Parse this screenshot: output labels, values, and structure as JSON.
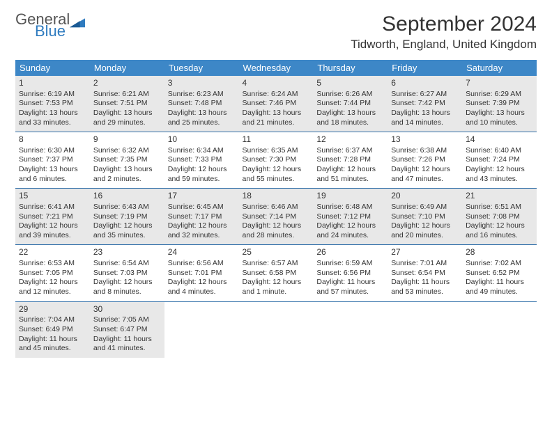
{
  "logo": {
    "general": "General",
    "blue": "Blue"
  },
  "title": "September 2024",
  "location": "Tidworth, England, United Kingdom",
  "colors": {
    "header_bg": "#3d87c7",
    "header_text": "#ffffff",
    "band_bg": "#e8e8e8",
    "sep_line": "#2f6ea8",
    "text": "#333333",
    "logo_general": "#555555",
    "logo_blue": "#2f7bbf"
  },
  "weekdays": [
    "Sunday",
    "Monday",
    "Tuesday",
    "Wednesday",
    "Thursday",
    "Friday",
    "Saturday"
  ],
  "days": [
    {
      "n": "1",
      "sr": "6:19 AM",
      "ss": "7:53 PM",
      "dl": "13 hours and 33 minutes."
    },
    {
      "n": "2",
      "sr": "6:21 AM",
      "ss": "7:51 PM",
      "dl": "13 hours and 29 minutes."
    },
    {
      "n": "3",
      "sr": "6:23 AM",
      "ss": "7:48 PM",
      "dl": "13 hours and 25 minutes."
    },
    {
      "n": "4",
      "sr": "6:24 AM",
      "ss": "7:46 PM",
      "dl": "13 hours and 21 minutes."
    },
    {
      "n": "5",
      "sr": "6:26 AM",
      "ss": "7:44 PM",
      "dl": "13 hours and 18 minutes."
    },
    {
      "n": "6",
      "sr": "6:27 AM",
      "ss": "7:42 PM",
      "dl": "13 hours and 14 minutes."
    },
    {
      "n": "7",
      "sr": "6:29 AM",
      "ss": "7:39 PM",
      "dl": "13 hours and 10 minutes."
    },
    {
      "n": "8",
      "sr": "6:30 AM",
      "ss": "7:37 PM",
      "dl": "13 hours and 6 minutes."
    },
    {
      "n": "9",
      "sr": "6:32 AM",
      "ss": "7:35 PM",
      "dl": "13 hours and 2 minutes."
    },
    {
      "n": "10",
      "sr": "6:34 AM",
      "ss": "7:33 PM",
      "dl": "12 hours and 59 minutes."
    },
    {
      "n": "11",
      "sr": "6:35 AM",
      "ss": "7:30 PM",
      "dl": "12 hours and 55 minutes."
    },
    {
      "n": "12",
      "sr": "6:37 AM",
      "ss": "7:28 PM",
      "dl": "12 hours and 51 minutes."
    },
    {
      "n": "13",
      "sr": "6:38 AM",
      "ss": "7:26 PM",
      "dl": "12 hours and 47 minutes."
    },
    {
      "n": "14",
      "sr": "6:40 AM",
      "ss": "7:24 PM",
      "dl": "12 hours and 43 minutes."
    },
    {
      "n": "15",
      "sr": "6:41 AM",
      "ss": "7:21 PM",
      "dl": "12 hours and 39 minutes."
    },
    {
      "n": "16",
      "sr": "6:43 AM",
      "ss": "7:19 PM",
      "dl": "12 hours and 35 minutes."
    },
    {
      "n": "17",
      "sr": "6:45 AM",
      "ss": "7:17 PM",
      "dl": "12 hours and 32 minutes."
    },
    {
      "n": "18",
      "sr": "6:46 AM",
      "ss": "7:14 PM",
      "dl": "12 hours and 28 minutes."
    },
    {
      "n": "19",
      "sr": "6:48 AM",
      "ss": "7:12 PM",
      "dl": "12 hours and 24 minutes."
    },
    {
      "n": "20",
      "sr": "6:49 AM",
      "ss": "7:10 PM",
      "dl": "12 hours and 20 minutes."
    },
    {
      "n": "21",
      "sr": "6:51 AM",
      "ss": "7:08 PM",
      "dl": "12 hours and 16 minutes."
    },
    {
      "n": "22",
      "sr": "6:53 AM",
      "ss": "7:05 PM",
      "dl": "12 hours and 12 minutes."
    },
    {
      "n": "23",
      "sr": "6:54 AM",
      "ss": "7:03 PM",
      "dl": "12 hours and 8 minutes."
    },
    {
      "n": "24",
      "sr": "6:56 AM",
      "ss": "7:01 PM",
      "dl": "12 hours and 4 minutes."
    },
    {
      "n": "25",
      "sr": "6:57 AM",
      "ss": "6:58 PM",
      "dl": "12 hours and 1 minute."
    },
    {
      "n": "26",
      "sr": "6:59 AM",
      "ss": "6:56 PM",
      "dl": "11 hours and 57 minutes."
    },
    {
      "n": "27",
      "sr": "7:01 AM",
      "ss": "6:54 PM",
      "dl": "11 hours and 53 minutes."
    },
    {
      "n": "28",
      "sr": "7:02 AM",
      "ss": "6:52 PM",
      "dl": "11 hours and 49 minutes."
    },
    {
      "n": "29",
      "sr": "7:04 AM",
      "ss": "6:49 PM",
      "dl": "11 hours and 45 minutes."
    },
    {
      "n": "30",
      "sr": "7:05 AM",
      "ss": "6:47 PM",
      "dl": "11 hours and 41 minutes."
    }
  ],
  "labels": {
    "sunrise": "Sunrise: ",
    "sunset": "Sunset: ",
    "daylight": "Daylight: "
  }
}
